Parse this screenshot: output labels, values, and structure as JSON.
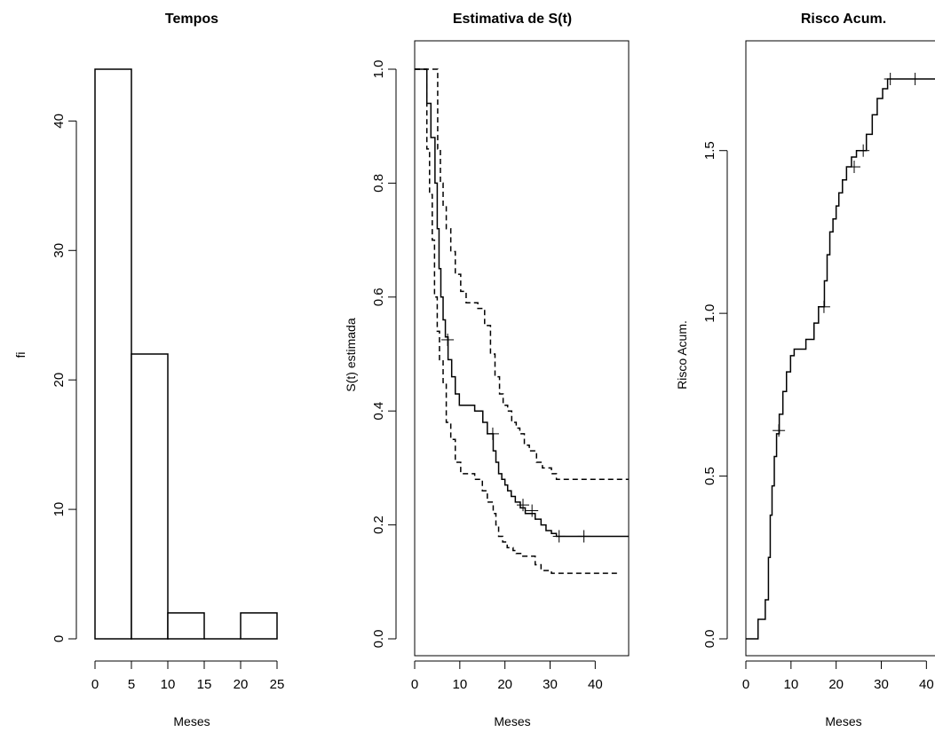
{
  "chart_data": [
    {
      "type": "bar",
      "title": "Tempos",
      "xlabel": "Meses",
      "ylabel": "fi",
      "bins": [
        [
          0,
          5
        ],
        [
          5,
          10
        ],
        [
          10,
          15
        ],
        [
          15,
          20
        ],
        [
          20,
          25
        ]
      ],
      "values": [
        44,
        22,
        2,
        0,
        2
      ],
      "xticks": [
        0,
        5,
        10,
        15,
        20,
        25
      ],
      "yticks": [
        0,
        10,
        20,
        30,
        40
      ],
      "xlim": [
        0,
        25
      ],
      "ylim": [
        0,
        44
      ]
    },
    {
      "type": "line",
      "title": "Estimativa de S(t)",
      "xlabel": "Meses",
      "ylabel": "S(t) estimada",
      "xticks": [
        0,
        10,
        20,
        30,
        40
      ],
      "yticks": [
        "0.0",
        "0.2",
        "0.4",
        "0.6",
        "0.8",
        "1.0"
      ],
      "xlim": [
        0,
        48
      ],
      "ylim": [
        0,
        1.0
      ],
      "series": [
        {
          "role": "estimate",
          "style": "solid",
          "x": [
            0,
            2.7,
            3.6,
            4.5,
            5.0,
            5.4,
            5.8,
            6.3,
            6.8,
            7.4,
            8.2,
            9.0,
            9.9,
            10.7,
            13.3,
            15.1,
            16.1,
            17.4,
            18.0,
            18.6,
            19.3,
            20.0,
            20.6,
            21.4,
            22.3,
            23.4,
            24.5,
            26.7,
            28.0,
            29.1,
            30.3,
            31.4,
            47.5
          ],
          "y": [
            1.0,
            0.94,
            0.88,
            0.8,
            0.72,
            0.65,
            0.6,
            0.56,
            0.53,
            0.49,
            0.46,
            0.43,
            0.41,
            0.41,
            0.4,
            0.38,
            0.36,
            0.33,
            0.31,
            0.29,
            0.28,
            0.27,
            0.26,
            0.25,
            0.24,
            0.23,
            0.22,
            0.21,
            0.2,
            0.19,
            0.185,
            0.18,
            0.18
          ]
        },
        {
          "role": "upper",
          "style": "dashed",
          "x": [
            0,
            4.3,
            5.1,
            5.7,
            6.3,
            7.0,
            8.0,
            9.0,
            10.2,
            11.4,
            14.0,
            15.5,
            16.8,
            17.8,
            18.8,
            19.6,
            20.6,
            21.5,
            22.5,
            23.3,
            24.3,
            25.4,
            27.0,
            28.3,
            30.3,
            31.4,
            47.5
          ],
          "y": [
            1.0,
            1.0,
            0.86,
            0.8,
            0.76,
            0.72,
            0.68,
            0.64,
            0.61,
            0.59,
            0.58,
            0.55,
            0.5,
            0.46,
            0.43,
            0.41,
            0.4,
            0.38,
            0.37,
            0.36,
            0.34,
            0.33,
            0.31,
            0.3,
            0.29,
            0.28,
            0.28
          ]
        },
        {
          "role": "lower",
          "style": "dashed",
          "x": [
            0,
            2.7,
            3.3,
            3.9,
            4.4,
            5.0,
            5.5,
            6.3,
            7.0,
            8.0,
            9.0,
            10.2,
            13.3,
            15.0,
            16.1,
            17.4,
            18.0,
            18.6,
            19.5,
            20.5,
            21.8,
            22.5,
            23.5,
            26.7,
            28.0,
            30.3,
            45.3
          ],
          "y": [
            1.0,
            0.86,
            0.78,
            0.7,
            0.6,
            0.54,
            0.49,
            0.45,
            0.38,
            0.35,
            0.31,
            0.29,
            0.28,
            0.26,
            0.24,
            0.22,
            0.2,
            0.18,
            0.17,
            0.16,
            0.155,
            0.15,
            0.145,
            0.13,
            0.12,
            0.115,
            0.115
          ]
        }
      ],
      "censored": [
        [
          7.3,
          0.525
        ],
        [
          17.3,
          0.36
        ],
        [
          24.0,
          0.235
        ],
        [
          26.0,
          0.225
        ],
        [
          32.0,
          0.18
        ],
        [
          37.5,
          0.18
        ]
      ]
    },
    {
      "type": "line",
      "title": "Risco Acum.",
      "xlabel": "Meses",
      "ylabel": "Risco Acum.",
      "xticks": [
        0,
        10,
        20,
        30,
        40
      ],
      "yticks": [
        "0.0",
        "0.5",
        "1.0",
        "1.5"
      ],
      "xlim": [
        0,
        48
      ],
      "ylim": [
        0,
        1.75
      ],
      "series": [
        {
          "role": "cumulative-hazard",
          "style": "solid",
          "x": [
            0,
            2.7,
            4.3,
            5.0,
            5.4,
            5.8,
            6.3,
            6.8,
            7.4,
            8.2,
            9.0,
            9.9,
            10.7,
            13.3,
            15.1,
            16.1,
            17.4,
            18.0,
            18.6,
            19.3,
            20.0,
            20.6,
            21.4,
            22.3,
            23.4,
            24.5,
            26.7,
            28.0,
            29.1,
            30.3,
            31.4,
            47.5
          ],
          "y": [
            0.0,
            0.06,
            0.12,
            0.25,
            0.38,
            0.47,
            0.56,
            0.63,
            0.69,
            0.76,
            0.82,
            0.87,
            0.89,
            0.92,
            0.97,
            1.02,
            1.1,
            1.18,
            1.25,
            1.29,
            1.33,
            1.37,
            1.41,
            1.45,
            1.48,
            1.5,
            1.55,
            1.61,
            1.66,
            1.69,
            1.72,
            1.72
          ]
        }
      ],
      "censored": [
        [
          7.3,
          0.64
        ],
        [
          17.3,
          1.02
        ],
        [
          24.0,
          1.45
        ],
        [
          26.0,
          1.5
        ],
        [
          32.0,
          1.72
        ],
        [
          37.5,
          1.72
        ]
      ]
    }
  ]
}
